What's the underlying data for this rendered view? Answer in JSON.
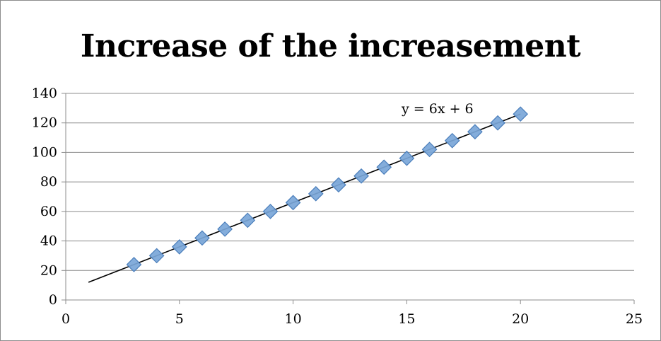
{
  "chart_data": {
    "type": "scatter",
    "title": "Increase of the increasement",
    "xlabel": "",
    "ylabel": "",
    "xlim": [
      0,
      25
    ],
    "ylim": [
      0,
      140
    ],
    "x_ticks": [
      "0",
      "5",
      "10",
      "15",
      "20",
      "25"
    ],
    "y_ticks": [
      "0",
      "20",
      "40",
      "60",
      "80",
      "100",
      "120",
      "140"
    ],
    "grid": "horizontal",
    "legend": "none",
    "series": [
      {
        "marker": "diamond",
        "color": "#7aa6d8",
        "edge_color": "#4a7ebb",
        "x": [
          3,
          4,
          5,
          6,
          7,
          8,
          9,
          10,
          11,
          12,
          13,
          14,
          15,
          16,
          17,
          18,
          19,
          20
        ],
        "y": [
          24,
          30,
          36,
          42,
          48,
          54,
          60,
          66,
          72,
          78,
          84,
          90,
          96,
          102,
          108,
          114,
          120,
          126
        ]
      }
    ],
    "trendline": {
      "equation": "y = 6x + 6",
      "slope": 6,
      "intercept": 6,
      "x_range": [
        1,
        20
      ],
      "color": "#000000"
    }
  }
}
